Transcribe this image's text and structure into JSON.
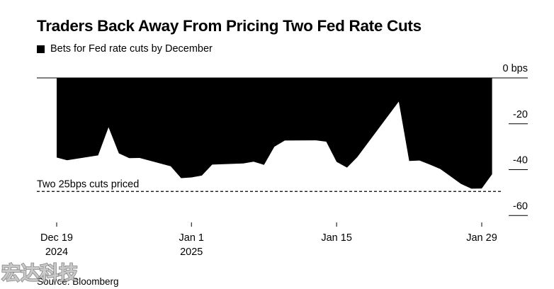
{
  "chart_data": {
    "type": "area",
    "title": "Traders Back Away From Pricing Two Fed Rate Cuts",
    "legend": {
      "label": "Bets for Fed rate cuts by December",
      "placement": "top-left",
      "color": "#000000"
    },
    "y_unit_label": "bps",
    "ylim": [
      -63,
      0
    ],
    "y_ticks": [
      0,
      -20,
      -40,
      -60
    ],
    "x_range": [
      "2024-12-19",
      "2025-01-29"
    ],
    "x_ticks": [
      {
        "date": "2024-12-19",
        "label": "Dec 19",
        "sublabel": "2024"
      },
      {
        "date": "2025-01-01",
        "label": "Jan 1",
        "sublabel": "2025"
      },
      {
        "date": "2025-01-15",
        "label": "Jan 15",
        "sublabel": ""
      },
      {
        "date": "2025-01-29",
        "label": "Jan 29",
        "sublabel": ""
      }
    ],
    "reference_line": {
      "value": -49.5,
      "label": "Two 25bps cuts priced",
      "style": "dashed"
    },
    "series": [
      {
        "points": [
          [
            "2024-12-19",
            -34.7
          ],
          [
            "2024-12-20",
            -35.9
          ],
          [
            "2024-12-23",
            -33.8
          ],
          [
            "2024-12-24",
            -21.5
          ],
          [
            "2024-12-25",
            -32.9
          ],
          [
            "2024-12-26",
            -35.0
          ],
          [
            "2024-12-27",
            -34.9
          ],
          [
            "2024-12-30",
            -38.5
          ],
          [
            "2024-12-31",
            -43.7
          ],
          [
            "2025-01-01",
            -43.4
          ],
          [
            "2025-01-02",
            -42.6
          ],
          [
            "2025-01-03",
            -37.8
          ],
          [
            "2025-01-06",
            -37.3
          ],
          [
            "2025-01-07",
            -36.5
          ],
          [
            "2025-01-08",
            -37.9
          ],
          [
            "2025-01-09",
            -30.0
          ],
          [
            "2025-01-10",
            -27.3
          ],
          [
            "2025-01-13",
            -27.2
          ],
          [
            "2025-01-14",
            -27.8
          ],
          [
            "2025-01-15",
            -36.6
          ],
          [
            "2025-01-16",
            -39.1
          ],
          [
            "2025-01-17",
            -34.5
          ],
          [
            "2025-01-21",
            -10.3
          ],
          [
            "2025-01-22",
            -36.2
          ],
          [
            "2025-01-23",
            -36.0
          ],
          [
            "2025-01-24",
            -37.8
          ],
          [
            "2025-01-25",
            -39.7
          ],
          [
            "2025-01-27",
            -46.2
          ],
          [
            "2025-01-28",
            -48.3
          ],
          [
            "2025-01-29",
            -48.2
          ],
          [
            "2025-01-30",
            -42.0
          ]
        ]
      }
    ]
  },
  "source": "Source: Bloomberg",
  "watermark": "宏达科技"
}
